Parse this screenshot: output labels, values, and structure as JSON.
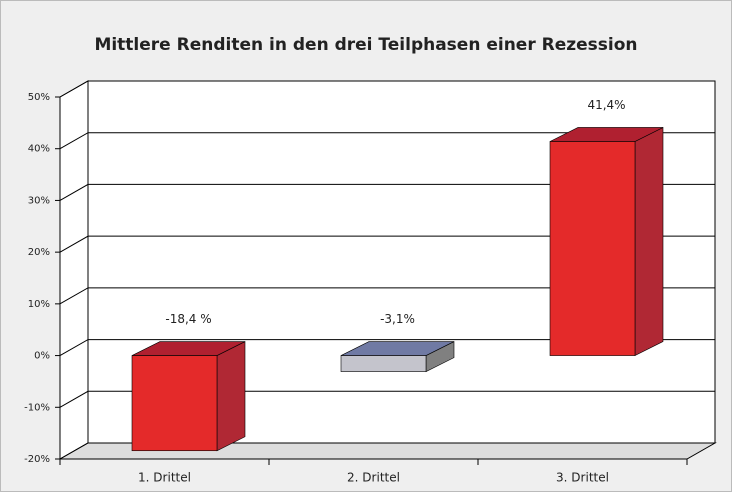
{
  "chart_data": {
    "type": "bar3d",
    "title": "Mittlere Renditen in den drei Teilphasen einer Rezession",
    "categories": [
      "1. Drittel",
      "2. Drittel",
      "3. Drittel"
    ],
    "values": [
      -18.4,
      -3.1,
      41.4
    ],
    "value_labels": [
      "-18,4 %",
      "-3,1%",
      "41,4%"
    ],
    "colors": [
      "#e42a2a",
      "#c4c4cc",
      "#e42a2a"
    ],
    "top_colors": [
      "#b02030",
      "#707aa4",
      "#b02030"
    ],
    "side_colors": [
      "#b02834",
      "#808080",
      "#b02834"
    ],
    "ylim": [
      -20,
      50
    ],
    "yticks": [
      {
        "value": -20,
        "label": "-20%"
      },
      {
        "value": -10,
        "label": "-10%"
      },
      {
        "value": 0,
        "label": "0%"
      },
      {
        "value": 10,
        "label": "10%"
      },
      {
        "value": 20,
        "label": "20%"
      },
      {
        "value": 30,
        "label": "30%"
      },
      {
        "value": 40,
        "label": "40%"
      },
      {
        "value": 50,
        "label": "50%"
      }
    ],
    "grid": true
  }
}
